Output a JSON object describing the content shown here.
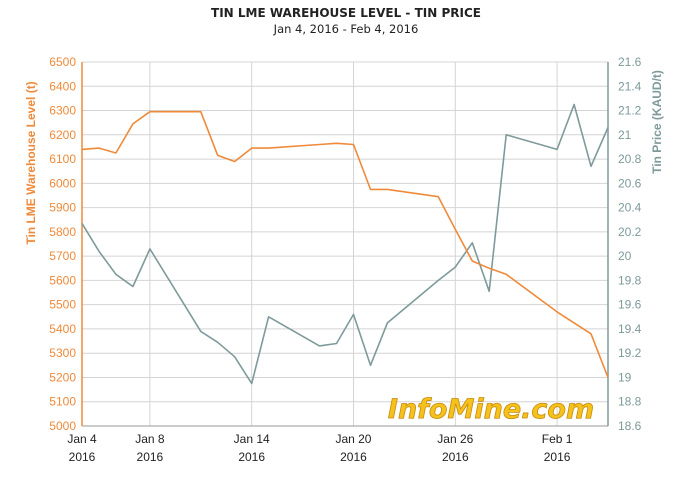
{
  "chart_data": {
    "type": "line",
    "title": "TIN LME WAREHOUSE LEVEL - TIN PRICE",
    "subtitle": "Jan 4, 2016 - Feb 4, 2016",
    "x_tick_labels": [
      {
        "date": "Jan 4",
        "year": "2016"
      },
      {
        "date": "Jan 8",
        "year": "2016"
      },
      {
        "date": "Jan 14",
        "year": "2016"
      },
      {
        "date": "Jan 20",
        "year": "2016"
      },
      {
        "date": "Jan 26",
        "year": "2016"
      },
      {
        "date": "Feb 1",
        "year": "2016"
      }
    ],
    "dates": [
      "2016-01-04",
      "2016-01-05",
      "2016-01-06",
      "2016-01-07",
      "2016-01-08",
      "2016-01-11",
      "2016-01-12",
      "2016-01-13",
      "2016-01-14",
      "2016-01-15",
      "2016-01-18",
      "2016-01-19",
      "2016-01-20",
      "2016-01-21",
      "2016-01-22",
      "2016-01-25",
      "2016-01-26",
      "2016-01-27",
      "2016-01-28",
      "2016-01-29",
      "2016-02-01",
      "2016-02-02",
      "2016-02-03",
      "2016-02-04"
    ],
    "series": [
      {
        "name": "Tin LME Warehouse Level (t)",
        "axis": "left",
        "color": "#ef8a3a",
        "values": [
          6140,
          6145,
          6125,
          6245,
          6295,
          6295,
          6115,
          6090,
          6145,
          6145,
          6160,
          6165,
          6160,
          5975,
          5975,
          5945,
          5810,
          5680,
          5650,
          5625,
          5470,
          5425,
          5380,
          5200
        ]
      },
      {
        "name": "Tin Price (KAUD/t)",
        "axis": "right",
        "color": "#7e9a9a",
        "values": [
          20.27,
          20.04,
          19.85,
          19.75,
          20.06,
          19.38,
          19.29,
          19.17,
          18.95,
          19.5,
          19.26,
          19.28,
          19.52,
          19.1,
          19.45,
          19.8,
          19.91,
          20.11,
          19.71,
          21.0,
          20.88,
          21.25,
          20.74,
          21.06
        ]
      }
    ],
    "y_left": {
      "label": "Tin LME Warehouse Level (t)",
      "min": 5000,
      "max": 6500,
      "step": 100
    },
    "y_right": {
      "label": "Tin Price (KAUD/t)",
      "min": 18.6,
      "max": 21.6,
      "step": 0.2
    },
    "grid": true,
    "legend": "none"
  },
  "watermark": "InfoMine.com"
}
